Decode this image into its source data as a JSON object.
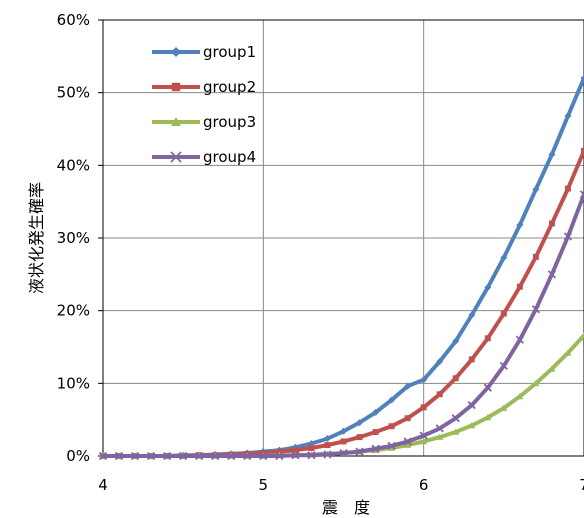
{
  "chart_data": {
    "type": "line",
    "xlabel": "震　度",
    "ylabel": "液状化発生確率",
    "xlim": [
      4,
      7
    ],
    "ylim": [
      0,
      0.6
    ],
    "x_ticks": [
      "4",
      "5",
      "6",
      "7"
    ],
    "y_ticks": [
      "0%",
      "10%",
      "20%",
      "30%",
      "40%",
      "50%",
      "60%"
    ],
    "grid": true,
    "legend_position": "top-left",
    "series": [
      {
        "name": "group1",
        "color": "#4f81bd",
        "marker": "diamond",
        "x": [
          4.0,
          4.1,
          4.2,
          4.3,
          4.4,
          4.5,
          4.6,
          4.7,
          4.8,
          4.9,
          5.0,
          5.1,
          5.2,
          5.3,
          5.4,
          5.5,
          5.6,
          5.7,
          5.8,
          5.9,
          6.0,
          6.1,
          6.2,
          6.3,
          6.4,
          6.5,
          6.6,
          6.7,
          6.8,
          6.9,
          7.0
        ],
        "y": [
          0.0,
          0.0,
          0.0,
          0.0,
          0.0,
          0.001,
          0.001,
          0.002,
          0.003,
          0.004,
          0.006,
          0.008,
          0.012,
          0.017,
          0.024,
          0.034,
          0.046,
          0.06,
          0.077,
          0.096,
          0.105,
          0.13,
          0.158,
          0.194,
          0.232,
          0.273,
          0.318,
          0.367,
          0.415,
          0.468,
          0.52
        ]
      },
      {
        "name": "group2",
        "color": "#c0504d",
        "marker": "square",
        "x": [
          4.0,
          4.1,
          4.2,
          4.3,
          4.4,
          4.5,
          4.6,
          4.7,
          4.8,
          4.9,
          5.0,
          5.1,
          5.2,
          5.3,
          5.4,
          5.5,
          5.6,
          5.7,
          5.8,
          5.9,
          6.0,
          6.1,
          6.2,
          6.3,
          6.4,
          6.5,
          6.6,
          6.7,
          6.8,
          6.9,
          7.0
        ],
        "y": [
          0.0,
          0.0,
          0.0,
          0.0,
          0.0,
          0.0,
          0.001,
          0.001,
          0.002,
          0.003,
          0.004,
          0.006,
          0.008,
          0.011,
          0.015,
          0.02,
          0.026,
          0.033,
          0.041,
          0.052,
          0.067,
          0.085,
          0.107,
          0.133,
          0.162,
          0.196,
          0.233,
          0.274,
          0.32,
          0.368,
          0.42
        ]
      },
      {
        "name": "group3",
        "color": "#9bbb59",
        "marker": "triangle",
        "x": [
          4.0,
          4.1,
          4.2,
          4.3,
          4.4,
          4.5,
          4.6,
          4.7,
          4.8,
          4.9,
          5.0,
          5.1,
          5.2,
          5.3,
          5.4,
          5.5,
          5.6,
          5.7,
          5.8,
          5.9,
          6.0,
          6.1,
          6.2,
          6.3,
          6.4,
          6.5,
          6.6,
          6.7,
          6.8,
          6.9,
          7.0
        ],
        "y": [
          0.0,
          0.0,
          0.0,
          0.0,
          0.0,
          0.0,
          0.0,
          0.0,
          0.0,
          0.0,
          0.0,
          0.001,
          0.001,
          0.002,
          0.003,
          0.004,
          0.006,
          0.008,
          0.011,
          0.015,
          0.02,
          0.026,
          0.033,
          0.042,
          0.053,
          0.066,
          0.082,
          0.1,
          0.12,
          0.142,
          0.166
        ]
      },
      {
        "name": "group4",
        "color": "#8064a2",
        "marker": "x",
        "x": [
          4.0,
          4.1,
          4.2,
          4.3,
          4.4,
          4.5,
          4.6,
          4.7,
          4.8,
          4.9,
          5.0,
          5.1,
          5.2,
          5.3,
          5.4,
          5.5,
          5.6,
          5.7,
          5.8,
          5.9,
          6.0,
          6.1,
          6.2,
          6.3,
          6.4,
          6.5,
          6.6,
          6.7,
          6.8,
          6.9,
          7.0
        ],
        "y": [
          0.0,
          0.0,
          0.0,
          0.0,
          0.0,
          0.0,
          0.0,
          0.0,
          0.0,
          0.0,
          0.0,
          0.0,
          0.001,
          0.001,
          0.002,
          0.004,
          0.006,
          0.01,
          0.014,
          0.02,
          0.028,
          0.038,
          0.052,
          0.07,
          0.094,
          0.124,
          0.16,
          0.202,
          0.25,
          0.302,
          0.36
        ]
      }
    ]
  }
}
